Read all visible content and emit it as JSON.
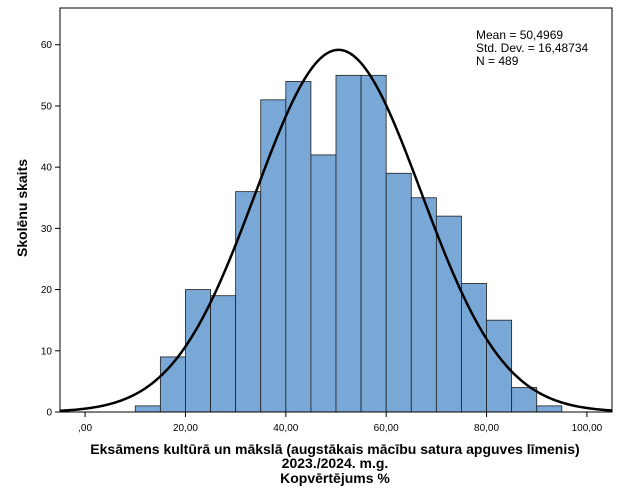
{
  "chart_data": {
    "type": "bar",
    "subtype": "histogram",
    "bin_width": 5,
    "bins": [
      {
        "from": 10,
        "to": 15,
        "count": 1
      },
      {
        "from": 15,
        "to": 20,
        "count": 9
      },
      {
        "from": 20,
        "to": 25,
        "count": 20
      },
      {
        "from": 25,
        "to": 30,
        "count": 19
      },
      {
        "from": 30,
        "to": 35,
        "count": 36
      },
      {
        "from": 35,
        "to": 40,
        "count": 51
      },
      {
        "from": 40,
        "to": 45,
        "count": 54
      },
      {
        "from": 45,
        "to": 50,
        "count": 42
      },
      {
        "from": 50,
        "to": 55,
        "count": 55
      },
      {
        "from": 55,
        "to": 60,
        "count": 55
      },
      {
        "from": 60,
        "to": 65,
        "count": 39
      },
      {
        "from": 65,
        "to": 70,
        "count": 35
      },
      {
        "from": 70,
        "to": 75,
        "count": 32
      },
      {
        "from": 75,
        "to": 80,
        "count": 21
      },
      {
        "from": 80,
        "to": 85,
        "count": 15
      },
      {
        "from": 85,
        "to": 90,
        "count": 4
      },
      {
        "from": 90,
        "to": 95,
        "count": 1
      }
    ],
    "normal_curve": {
      "mean": 50.4969,
      "sd": 16.48734,
      "n": 489
    },
    "xlim": [
      -5,
      105
    ],
    "ylim": [
      0,
      66
    ],
    "x_ticks": [
      0,
      20,
      40,
      60,
      80,
      100
    ],
    "x_tick_labels": [
      ",00",
      "20,00",
      "40,00",
      "60,00",
      "80,00",
      "100,00"
    ],
    "y_ticks": [
      0,
      10,
      20,
      30,
      40,
      50,
      60
    ],
    "y_tick_labels": [
      "0",
      "10",
      "20",
      "30",
      "40",
      "50",
      "60"
    ],
    "xlabel_lines": [
      "Eksāmens kultūrā un mākslā (augstākais mācību satura apguves līmenis)",
      "2023./2024. m.g.",
      "Kopvērtējums %"
    ],
    "ylabel": "Skolēnu skaits",
    "stats": {
      "mean_text": "Mean = 50,4969",
      "sd_text": "Std. Dev. = 16,48734",
      "n_text": "N = 489"
    },
    "colors": {
      "bar_fill": "#79a7d6",
      "bar_stroke": "#1f1f1f",
      "curve": "#000000",
      "frame": "#000000"
    },
    "grid": false
  }
}
